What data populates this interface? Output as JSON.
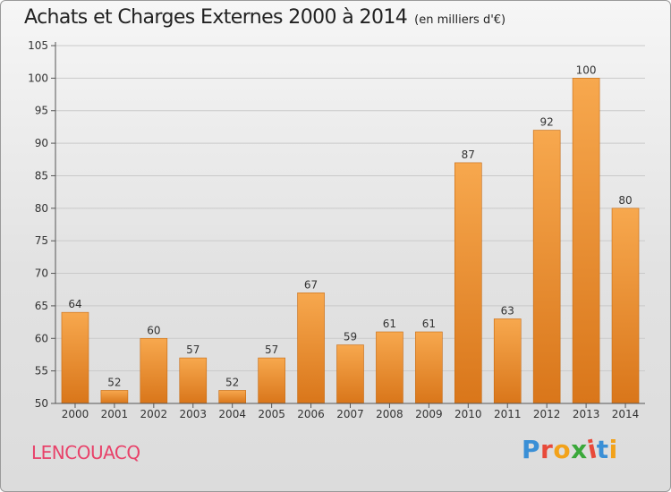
{
  "header": {
    "title": "Achats et Charges Externes 2000 à 2014",
    "subtitle": "(en milliers d'€)"
  },
  "commune": "LENCOUACQ",
  "logo": {
    "text": "Proxiti",
    "letter_colors": [
      "#3a8fd6",
      "#e84a3a",
      "#f2a21a",
      "#3aa83a",
      "#e84a3a",
      "#3a8fd6",
      "#f2a21a"
    ]
  },
  "colors": {
    "bar_light": "#f7a84e",
    "bar_dark": "#d9761a",
    "axis": "#555555",
    "grid": "#c9c9c9"
  },
  "chart_data": {
    "type": "bar",
    "title": "Achats et Charges Externes 2000 à 2014",
    "subtitle": "(en milliers d'€)",
    "xlabel": "",
    "ylabel": "",
    "categories": [
      "2000",
      "2001",
      "2002",
      "2003",
      "2004",
      "2005",
      "2006",
      "2007",
      "2008",
      "2009",
      "2010",
      "2011",
      "2012",
      "2013",
      "2014"
    ],
    "values": [
      64,
      52,
      60,
      57,
      52,
      57,
      67,
      59,
      61,
      61,
      87,
      63,
      92,
      100,
      80
    ],
    "data_labels": [
      "64",
      "52",
      "60",
      "57",
      "52",
      "57",
      "67",
      "59",
      "61",
      "61",
      "87",
      "63",
      "92",
      "100",
      "80"
    ],
    "ylim": [
      50,
      105
    ],
    "yticks": [
      50,
      55,
      60,
      65,
      70,
      75,
      80,
      85,
      90,
      95,
      100,
      105
    ],
    "ytick_labels": [
      "50",
      "55",
      "60",
      "65",
      "70",
      "75",
      "80",
      "85",
      "90",
      "95",
      "100",
      "105"
    ],
    "grid": true,
    "legend": "none"
  }
}
